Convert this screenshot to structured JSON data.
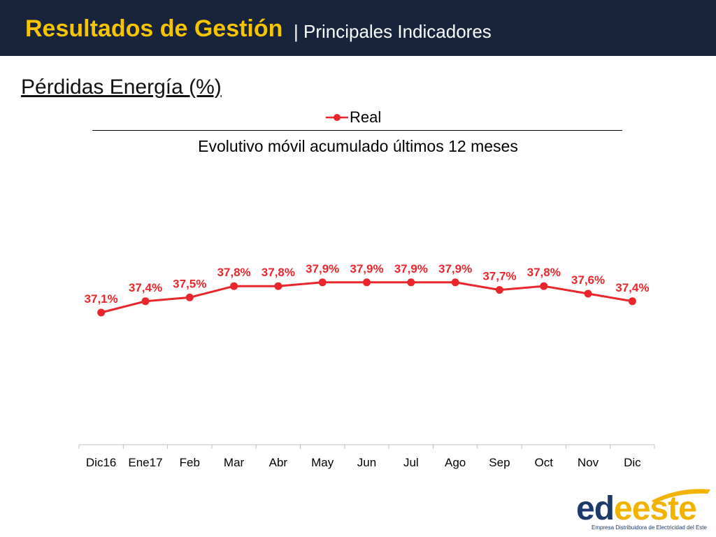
{
  "header": {
    "title": "Resultados de Gestión",
    "subtitle": "| Principales Indicadores",
    "background": "#17243b",
    "title_color": "#f7c400"
  },
  "section_title": "Pérdidas Energía (%)",
  "legend": {
    "label": "Real"
  },
  "chart_title": "Evolutivo móvil  acumulado últimos 12 meses",
  "chart_data": {
    "type": "line",
    "categories": [
      "Dic16",
      "Ene17",
      "Feb",
      "Mar",
      "Abr",
      "May",
      "Jun",
      "Jul",
      "Ago",
      "Sep",
      "Oct",
      "Nov",
      "Dic"
    ],
    "series": [
      {
        "name": "Real",
        "values": [
          37.1,
          37.4,
          37.5,
          37.8,
          37.8,
          37.9,
          37.9,
          37.9,
          37.9,
          37.7,
          37.8,
          37.6,
          37.4
        ],
        "labels": [
          "37,1%",
          "37,4%",
          "37,5%",
          "37,8%",
          "37,8%",
          "37,9%",
          "37,9%",
          "37,9%",
          "37,9%",
          "37,7%",
          "37,8%",
          "37,6%",
          "37,4%"
        ],
        "color": "#e8262b"
      }
    ],
    "xlabel": "",
    "ylabel": "",
    "y_axis_visible": false,
    "grid": false,
    "legend_position": "top-center"
  },
  "logo": {
    "brand_part1": "ed",
    "brand_part2": "eeste",
    "tagline": "Empresa Distribuidora de Electricidad del Este",
    "colors": {
      "navy": "#1d3a6b",
      "yellow": "#f2b200"
    }
  }
}
